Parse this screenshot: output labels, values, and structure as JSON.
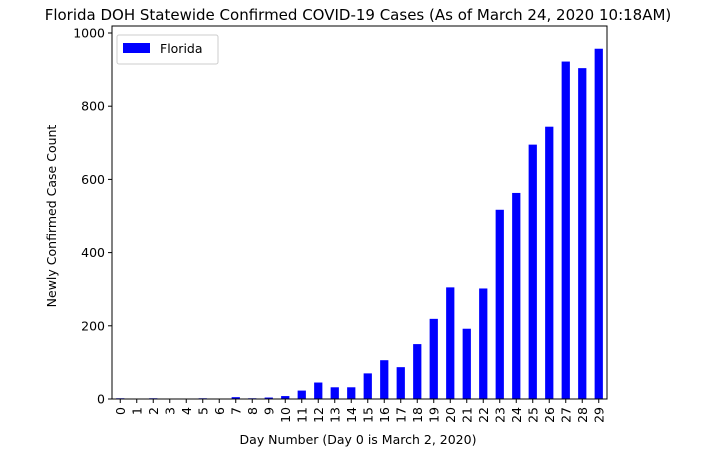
{
  "chart_data": {
    "type": "bar",
    "title": "Florida DOH Statewide Confirmed COVID-19 Cases (As of March 24, 2020 10:18AM)",
    "xlabel": "Day Number (Day 0 is March 2, 2020)",
    "ylabel": "Newly Confirmed Case Count",
    "categories": [
      "0",
      "1",
      "2",
      "3",
      "4",
      "5",
      "6",
      "7",
      "8",
      "9",
      "10",
      "11",
      "12",
      "13",
      "14",
      "15",
      "16",
      "17",
      "18",
      "19",
      "20",
      "21",
      "22",
      "23",
      "24",
      "25",
      "26",
      "27",
      "28",
      "29"
    ],
    "series": [
      {
        "name": "Florida",
        "color": "#0000ff",
        "values": [
          2,
          1,
          2,
          0,
          0,
          2,
          0,
          5,
          2,
          4,
          8,
          23,
          45,
          32,
          32,
          70,
          106,
          87,
          150,
          219,
          305,
          192,
          302,
          517,
          563,
          695,
          744,
          922,
          904,
          957
        ]
      }
    ],
    "ylim": [
      0,
      1000
    ],
    "yticks": [
      "0",
      "200",
      "400",
      "600",
      "800",
      "1000"
    ],
    "grid": false,
    "legend_position": "top-left"
  }
}
